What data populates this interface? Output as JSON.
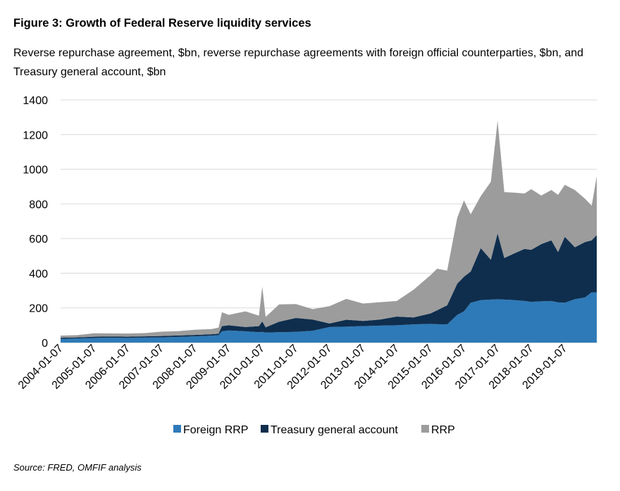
{
  "title": "Figure 3: Growth of Federal Reserve liquidity services",
  "subtitle": "Reverse repurchase agreement, $bn, reverse repurchase agreements with foreign official counterparties, $bn, and Treasury general account, $bn",
  "source": "Source: FRED, OMFIF analysis",
  "colors": {
    "foreign_rrp": "#2e7ab8",
    "tga": "#0f2e4e",
    "rrp": "#9c9c9c",
    "grid": "#d9d9d9"
  },
  "chart_data": {
    "type": "area",
    "stacked": true,
    "ylim": [
      0,
      1400
    ],
    "yticks": [
      0,
      200,
      400,
      600,
      800,
      1000,
      1200,
      1400
    ],
    "xlim": [
      2004.0,
      2019.95
    ],
    "xticks": [
      "2004-01-07",
      "2005-01-07",
      "2006-01-07",
      "2007-01-07",
      "2008-01-07",
      "2009-01-07",
      "2010-01-07",
      "2011-01-07",
      "2012-01-07",
      "2013-01-07",
      "2014-01-07",
      "2015-01-07",
      "2016-01-07",
      "2017-01-07",
      "2018-01-07",
      "2019-01-07"
    ],
    "grid": "horizontal",
    "legend_position": "bottom",
    "x": [
      2004.0,
      2004.5,
      2005.0,
      2005.5,
      2006.0,
      2006.5,
      2007.0,
      2007.5,
      2008.0,
      2008.5,
      2008.7,
      2008.8,
      2009.0,
      2009.5,
      2009.9,
      2010.0,
      2010.1,
      2010.5,
      2011.0,
      2011.5,
      2012.0,
      2012.5,
      2013.0,
      2013.5,
      2014.0,
      2014.5,
      2015.0,
      2015.2,
      2015.5,
      2015.8,
      2016.0,
      2016.2,
      2016.5,
      2016.8,
      2017.0,
      2017.2,
      2017.5,
      2017.8,
      2018.0,
      2018.3,
      2018.6,
      2018.8,
      2019.0,
      2019.3,
      2019.6,
      2019.8,
      2019.95
    ],
    "series": [
      {
        "name": "Foreign RRP",
        "values": [
          22,
          24,
          27,
          28,
          27,
          29,
          30,
          33,
          36,
          40,
          43,
          65,
          70,
          65,
          60,
          62,
          58,
          60,
          62,
          68,
          90,
          92,
          95,
          98,
          100,
          105,
          108,
          106,
          105,
          160,
          180,
          230,
          245,
          248,
          250,
          248,
          245,
          240,
          235,
          238,
          240,
          232,
          230,
          250,
          260,
          290,
          290
        ]
      },
      {
        "name": "Treasury general account",
        "values": [
          6,
          6,
          7,
          7,
          7,
          7,
          8,
          8,
          8,
          8,
          8,
          30,
          30,
          25,
          35,
          60,
          30,
          60,
          80,
          65,
          20,
          40,
          30,
          35,
          50,
          40,
          60,
          80,
          110,
          180,
          200,
          180,
          300,
          230,
          380,
          240,
          270,
          300,
          300,
          330,
          350,
          290,
          380,
          300,
          320,
          300,
          330
        ]
      },
      {
        "name": "RRP",
        "values": [
          12,
          13,
          20,
          18,
          18,
          19,
          25,
          25,
          30,
          30,
          35,
          80,
          60,
          90,
          60,
          200,
          60,
          100,
          80,
          60,
          100,
          120,
          100,
          100,
          90,
          160,
          220,
          240,
          200,
          380,
          440,
          330,
          300,
          450,
          650,
          380,
          350,
          320,
          350,
          280,
          290,
          330,
          300,
          330,
          250,
          200,
          340
        ]
      }
    ]
  }
}
